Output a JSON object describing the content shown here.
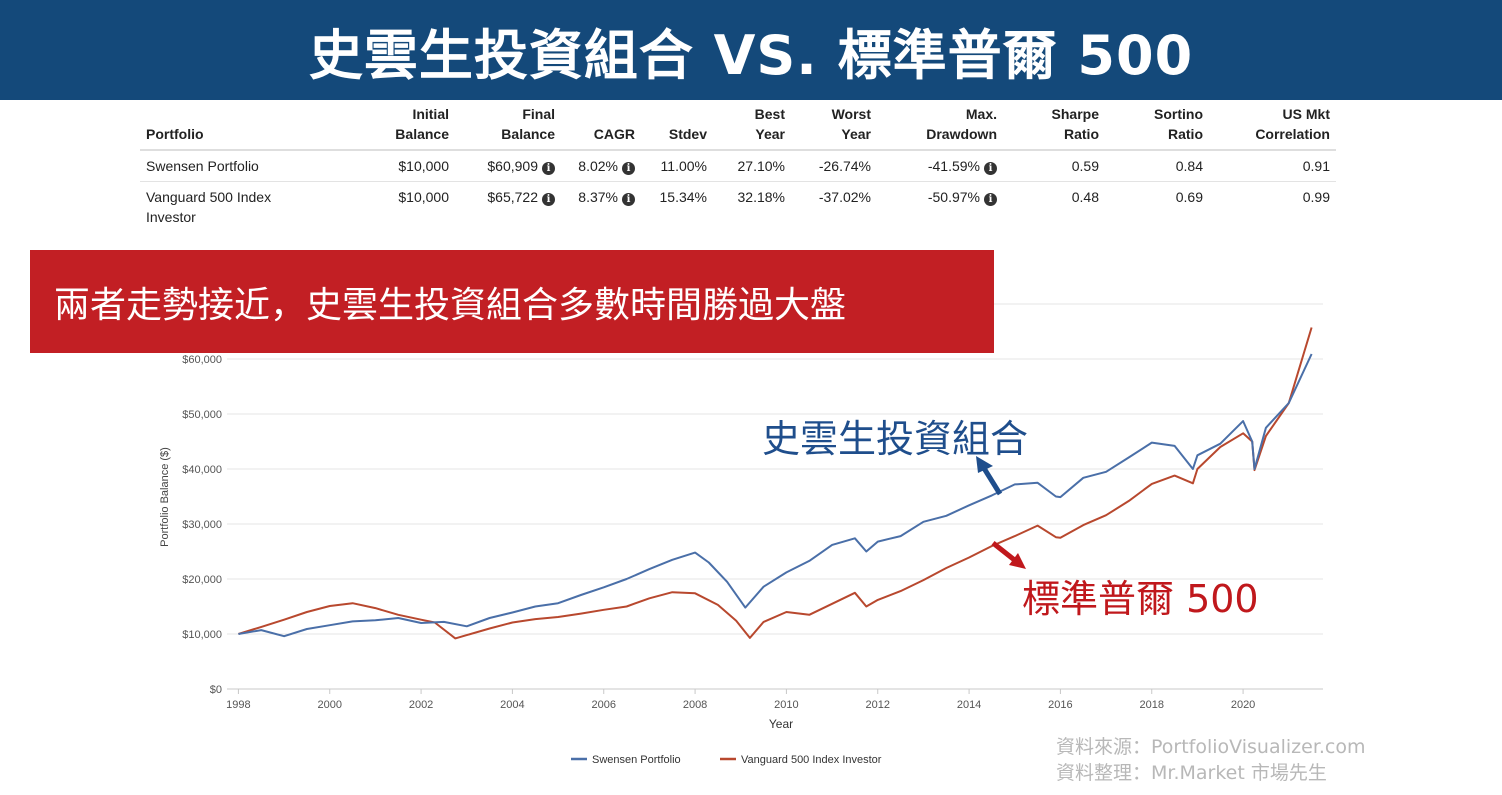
{
  "banner": {
    "title": "史雲生投資組合 VS. 標準普爾 500"
  },
  "table": {
    "headers": [
      [
        "",
        "Portfolio"
      ],
      [
        "Initial",
        "Balance"
      ],
      [
        "Final",
        "Balance"
      ],
      [
        "",
        "CAGR"
      ],
      [
        "",
        "Stdev"
      ],
      [
        "Best",
        "Year"
      ],
      [
        "Worst",
        "Year"
      ],
      [
        "Max.",
        "Drawdown"
      ],
      [
        "Sharpe",
        "Ratio"
      ],
      [
        "Sortino",
        "Ratio"
      ],
      [
        "US Mkt",
        "Correlation"
      ]
    ],
    "rows": [
      {
        "name": "Swensen Portfolio",
        "initial": "$10,000",
        "final": "$60,909",
        "cagr": "8.02%",
        "stdev": "11.00%",
        "best": "27.10%",
        "worst": "-26.74%",
        "maxdd": "-41.59%",
        "sharpe": "0.59",
        "sortino": "0.84",
        "corr": "0.91"
      },
      {
        "name": "Vanguard 500 Index Investor",
        "initial": "$10,000",
        "final": "$65,722",
        "cagr": "8.37%",
        "stdev": "15.34%",
        "best": "32.18%",
        "worst": "-37.02%",
        "maxdd": "-50.97%",
        "sharpe": "0.48",
        "sortino": "0.69",
        "corr": "0.99"
      }
    ],
    "info_icon": "info-circle-icon"
  },
  "callout": {
    "text": "兩者走勢接近，史雲生投資組合多數時間勝過大盤"
  },
  "annotations": {
    "swensen": "史雲生投資組合",
    "sp500": "標準普爾 500"
  },
  "source": {
    "line1": "資料來源：PortfolioVisualizer.com",
    "line2": "資料整理：Mr.Market 市場先生"
  },
  "colors": {
    "banner": "#14497a",
    "callout": "#c21f24",
    "swensen": "#4a6fa8",
    "vanguard": "#b8482e",
    "ann_blue": "#1f4e8c",
    "ann_red": "#c0181c"
  },
  "chart_data": {
    "type": "line",
    "title": "",
    "xlabel": "Year",
    "ylabel": "Portfolio Balance ($)",
    "xlim": [
      1997.75,
      2021.75
    ],
    "ylim": [
      0,
      70000
    ],
    "x_ticks": [
      1998,
      2000,
      2002,
      2004,
      2006,
      2008,
      2010,
      2012,
      2014,
      2016,
      2018,
      2020
    ],
    "y_ticks": [
      0,
      10000,
      20000,
      30000,
      40000,
      50000,
      60000
    ],
    "y_tick_labels": [
      "$0",
      "$10,000",
      "$20,000",
      "$30,000",
      "$40,000",
      "$50,000",
      "$60,000"
    ],
    "grid": "horizontal",
    "legend": "bottom-center",
    "series": [
      {
        "name": "Swensen Portfolio",
        "color": "#4a6fa8",
        "points": [
          [
            1998,
            10000
          ],
          [
            1998.5,
            10700
          ],
          [
            1999,
            9600
          ],
          [
            1999.5,
            10900
          ],
          [
            2000,
            11600
          ],
          [
            2000.5,
            12300
          ],
          [
            2001,
            12500
          ],
          [
            2001.5,
            12900
          ],
          [
            2002,
            12000
          ],
          [
            2002.5,
            12200
          ],
          [
            2003,
            11400
          ],
          [
            2003.5,
            12900
          ],
          [
            2004,
            13900
          ],
          [
            2004.5,
            15000
          ],
          [
            2005,
            15600
          ],
          [
            2005.5,
            17100
          ],
          [
            2006,
            18500
          ],
          [
            2006.5,
            20000
          ],
          [
            2007,
            21800
          ],
          [
            2007.5,
            23500
          ],
          [
            2008,
            24800
          ],
          [
            2008.3,
            23000
          ],
          [
            2008.7,
            19500
          ],
          [
            2009.1,
            14800
          ],
          [
            2009.5,
            18600
          ],
          [
            2010,
            21200
          ],
          [
            2010.5,
            23300
          ],
          [
            2011,
            26200
          ],
          [
            2011.5,
            27400
          ],
          [
            2011.75,
            25000
          ],
          [
            2012,
            26800
          ],
          [
            2012.5,
            27800
          ],
          [
            2013,
            30400
          ],
          [
            2013.5,
            31500
          ],
          [
            2014,
            33400
          ],
          [
            2014.5,
            35200
          ],
          [
            2015,
            37200
          ],
          [
            2015.5,
            37500
          ],
          [
            2015.9,
            35000
          ],
          [
            2016,
            34900
          ],
          [
            2016.5,
            38400
          ],
          [
            2017,
            39500
          ],
          [
            2017.5,
            42100
          ],
          [
            2018,
            44800
          ],
          [
            2018.5,
            44200
          ],
          [
            2018.9,
            40000
          ],
          [
            2019,
            42500
          ],
          [
            2019.5,
            44600
          ],
          [
            2020,
            48700
          ],
          [
            2020.2,
            45000
          ],
          [
            2020.25,
            40000
          ],
          [
            2020.5,
            47500
          ],
          [
            2021,
            52000
          ],
          [
            2021.5,
            60909
          ]
        ]
      },
      {
        "name": "Vanguard 500 Index Investor",
        "color": "#b8482e",
        "points": [
          [
            1998,
            10000
          ],
          [
            1998.5,
            11300
          ],
          [
            1999,
            12600
          ],
          [
            1999.5,
            14000
          ],
          [
            2000,
            15100
          ],
          [
            2000.5,
            15600
          ],
          [
            2001,
            14700
          ],
          [
            2001.5,
            13500
          ],
          [
            2002,
            12600
          ],
          [
            2002.3,
            12100
          ],
          [
            2002.75,
            9200
          ],
          [
            2003,
            9800
          ],
          [
            2003.5,
            11000
          ],
          [
            2004,
            12100
          ],
          [
            2004.5,
            12700
          ],
          [
            2005,
            13100
          ],
          [
            2005.5,
            13700
          ],
          [
            2006,
            14400
          ],
          [
            2006.5,
            15000
          ],
          [
            2007,
            16500
          ],
          [
            2007.5,
            17600
          ],
          [
            2008,
            17400
          ],
          [
            2008.5,
            15300
          ],
          [
            2008.9,
            12400
          ],
          [
            2009.2,
            9300
          ],
          [
            2009.5,
            12200
          ],
          [
            2010,
            14000
          ],
          [
            2010.5,
            13500
          ],
          [
            2011,
            15500
          ],
          [
            2011.5,
            17500
          ],
          [
            2011.75,
            15000
          ],
          [
            2012,
            16200
          ],
          [
            2012.5,
            17800
          ],
          [
            2013,
            19800
          ],
          [
            2013.5,
            22000
          ],
          [
            2014,
            23900
          ],
          [
            2014.5,
            26000
          ],
          [
            2015,
            27800
          ],
          [
            2015.5,
            29700
          ],
          [
            2015.9,
            27600
          ],
          [
            2016,
            27500
          ],
          [
            2016.5,
            29800
          ],
          [
            2017,
            31600
          ],
          [
            2017.5,
            34200
          ],
          [
            2018,
            37300
          ],
          [
            2018.5,
            38800
          ],
          [
            2018.9,
            37400
          ],
          [
            2019,
            40000
          ],
          [
            2019.5,
            44000
          ],
          [
            2020,
            46500
          ],
          [
            2020.2,
            45000
          ],
          [
            2020.25,
            39800
          ],
          [
            2020.5,
            46000
          ],
          [
            2021,
            52000
          ],
          [
            2021.5,
            65722
          ]
        ]
      }
    ]
  }
}
